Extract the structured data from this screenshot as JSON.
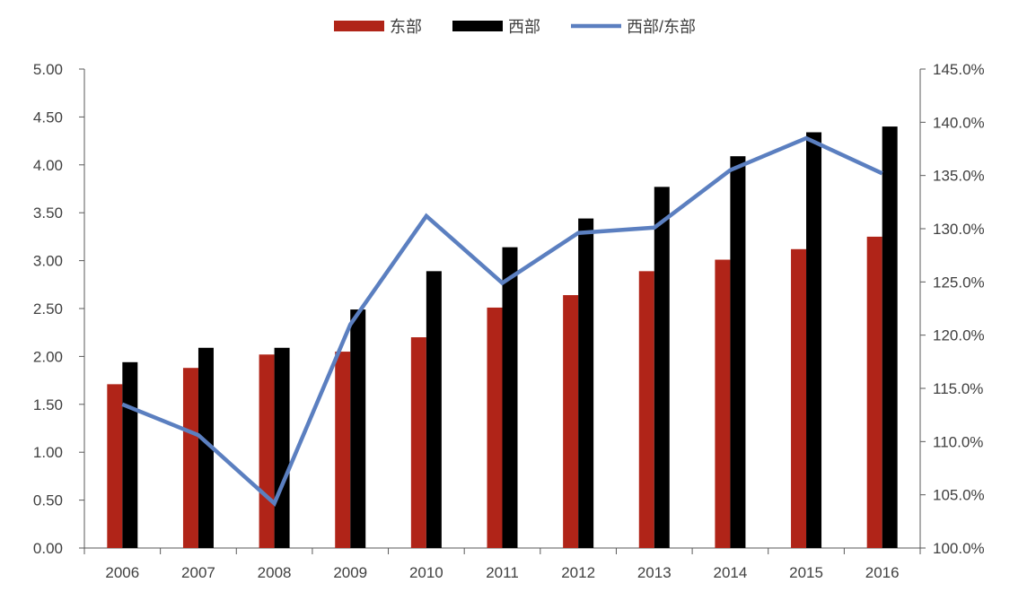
{
  "chart_data": {
    "type": "bar",
    "categories": [
      "2006",
      "2007",
      "2008",
      "2009",
      "2010",
      "2011",
      "2012",
      "2013",
      "2014",
      "2015",
      "2016"
    ],
    "series": [
      {
        "name": "东部",
        "type": "bar",
        "axis": "left",
        "color": "#B02418",
        "values": [
          1.71,
          1.88,
          2.02,
          2.05,
          2.2,
          2.51,
          2.64,
          2.89,
          3.01,
          3.12,
          3.25
        ]
      },
      {
        "name": "西部",
        "type": "bar",
        "axis": "left",
        "color": "#000000",
        "values": [
          1.94,
          2.09,
          2.09,
          2.49,
          2.89,
          3.14,
          3.44,
          3.77,
          4.09,
          4.34,
          4.4
        ]
      },
      {
        "name": "西部/东部",
        "type": "line",
        "axis": "right",
        "color": "#5B7FC0",
        "values": [
          113.5,
          110.6,
          104.2,
          121.0,
          131.2,
          124.9,
          129.6,
          130.1,
          135.5,
          138.5,
          135.2
        ]
      }
    ],
    "y_left": {
      "range": [
        0,
        5
      ],
      "ticks": [
        "0.00",
        "0.50",
        "1.00",
        "1.50",
        "2.00",
        "2.50",
        "3.00",
        "3.50",
        "4.00",
        "4.50",
        "5.00"
      ]
    },
    "y_right": {
      "range": [
        100,
        145
      ],
      "unit": "%",
      "ticks": [
        "100.0%",
        "105.0%",
        "110.0%",
        "115.0%",
        "120.0%",
        "125.0%",
        "130.0%",
        "135.0%",
        "140.0%",
        "145.0%"
      ]
    },
    "legend_position": "top-center",
    "grid": false
  }
}
